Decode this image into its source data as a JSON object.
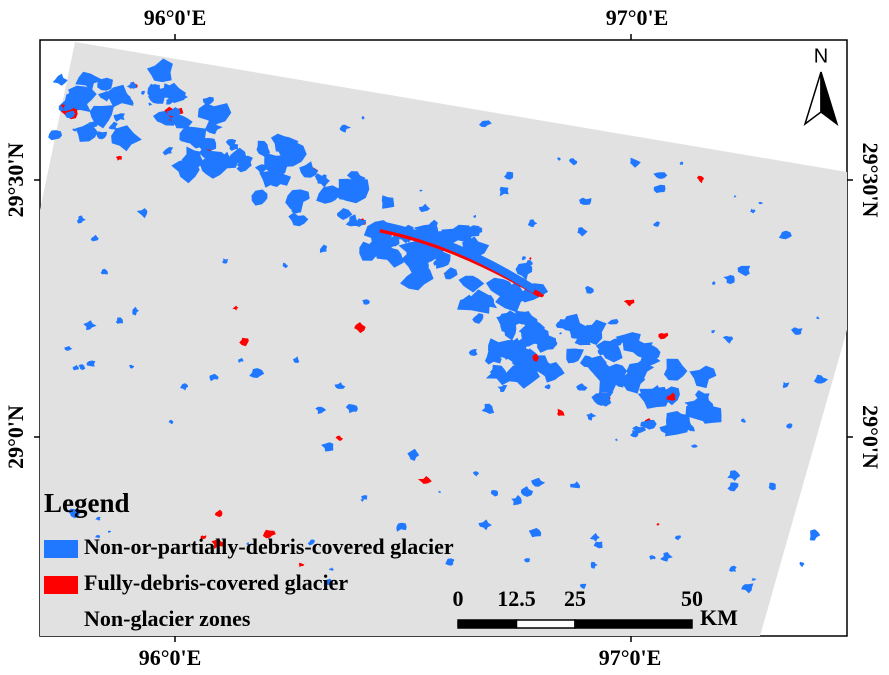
{
  "map": {
    "top_labels": [
      "96°0'E",
      "97°0'E"
    ],
    "bottom_labels": [
      "96°0'E",
      "97°0'E"
    ],
    "left_labels": [
      "29°30'N",
      "29°0'N"
    ],
    "right_labels": [
      "29°30'N",
      "29°0'N"
    ],
    "north_arrow": "N",
    "legend": {
      "title": "Legend",
      "items": [
        {
          "label": "Non-or-partially-debris-covered glacier",
          "color": "#1f78ff"
        },
        {
          "label": "Fully-debris-covered glacier",
          "color": "#ff0000"
        },
        {
          "label": "Non-glacier zones",
          "color": "#e1e1e1"
        }
      ]
    },
    "scale_bar": {
      "ticks": [
        0,
        12.5,
        25,
        50
      ],
      "unit": "KM"
    }
  }
}
